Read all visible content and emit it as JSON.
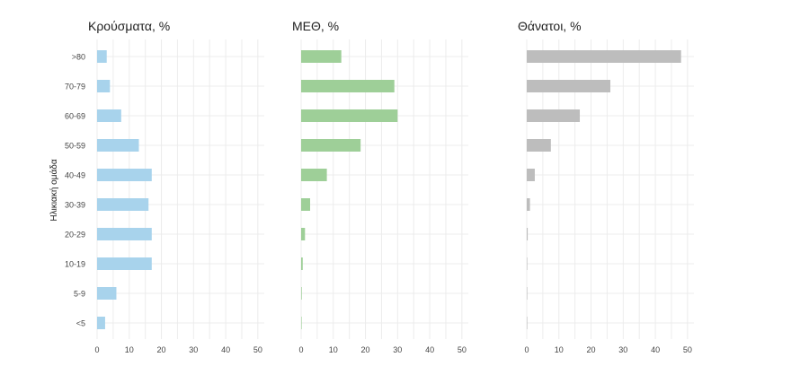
{
  "chart_data": {
    "type": "bar",
    "orientation": "horizontal",
    "ylabel": "Ηλικιακή ομάδα",
    "categories": [
      ">80",
      "70-79",
      "60-69",
      "50-59",
      "40-49",
      "30-39",
      "20-29",
      "10-19",
      "5-9",
      "<5"
    ],
    "xlim": [
      0,
      52
    ],
    "xticks": [
      0,
      10,
      20,
      30,
      40,
      50
    ],
    "grid": true,
    "panels": [
      {
        "title": "Κρούσματα, %",
        "color": "#a8d3ec",
        "values": [
          3,
          4,
          7.5,
          13,
          17,
          16,
          17,
          17,
          6,
          2.5
        ]
      },
      {
        "title": "ΜΕΘ, %",
        "color": "#9ecf98",
        "values": [
          12.5,
          29,
          30,
          18.5,
          8,
          2.8,
          1.2,
          0.5,
          0.2,
          0.1
        ]
      },
      {
        "title": "Θάνατοι, %",
        "color": "#bdbdbd",
        "values": [
          48,
          26,
          16.5,
          7.5,
          2.5,
          1,
          0.3,
          0.1,
          0.05,
          0.05
        ]
      }
    ]
  }
}
